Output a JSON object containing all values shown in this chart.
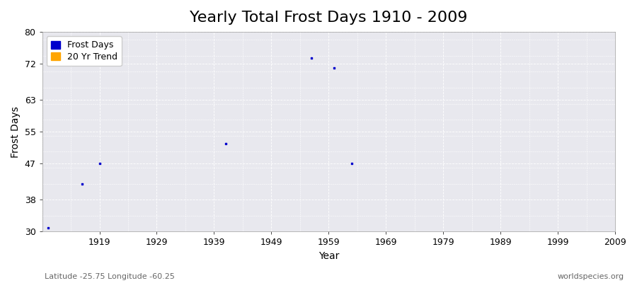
{
  "title": "Yearly Total Frost Days 1910 - 2009",
  "xlabel": "Year",
  "ylabel": "Frost Days",
  "scatter_x": [
    1910,
    1916,
    1919,
    1941,
    1956,
    1963,
    1960
  ],
  "scatter_y": [
    31,
    42,
    47,
    52,
    73.5,
    47,
    71
  ],
  "scatter_color": "#0000cc",
  "xlim": [
    1909,
    2009
  ],
  "ylim": [
    30,
    80
  ],
  "yticks": [
    30,
    38,
    47,
    55,
    63,
    72,
    80
  ],
  "xticks": [
    1919,
    1929,
    1939,
    1949,
    1959,
    1969,
    1979,
    1989,
    1999,
    2009
  ],
  "figure_bg_color": "#ffffff",
  "plot_bg_color": "#e8e8ee",
  "grid_color": "#ffffff",
  "legend_frost_color": "#0000cc",
  "legend_trend_color": "#ffa500",
  "footer_left": "Latitude -25.75 Longitude -60.25",
  "footer_right": "worldspecies.org",
  "title_fontsize": 16,
  "axis_label_fontsize": 10,
  "tick_fontsize": 9,
  "footer_fontsize": 8
}
